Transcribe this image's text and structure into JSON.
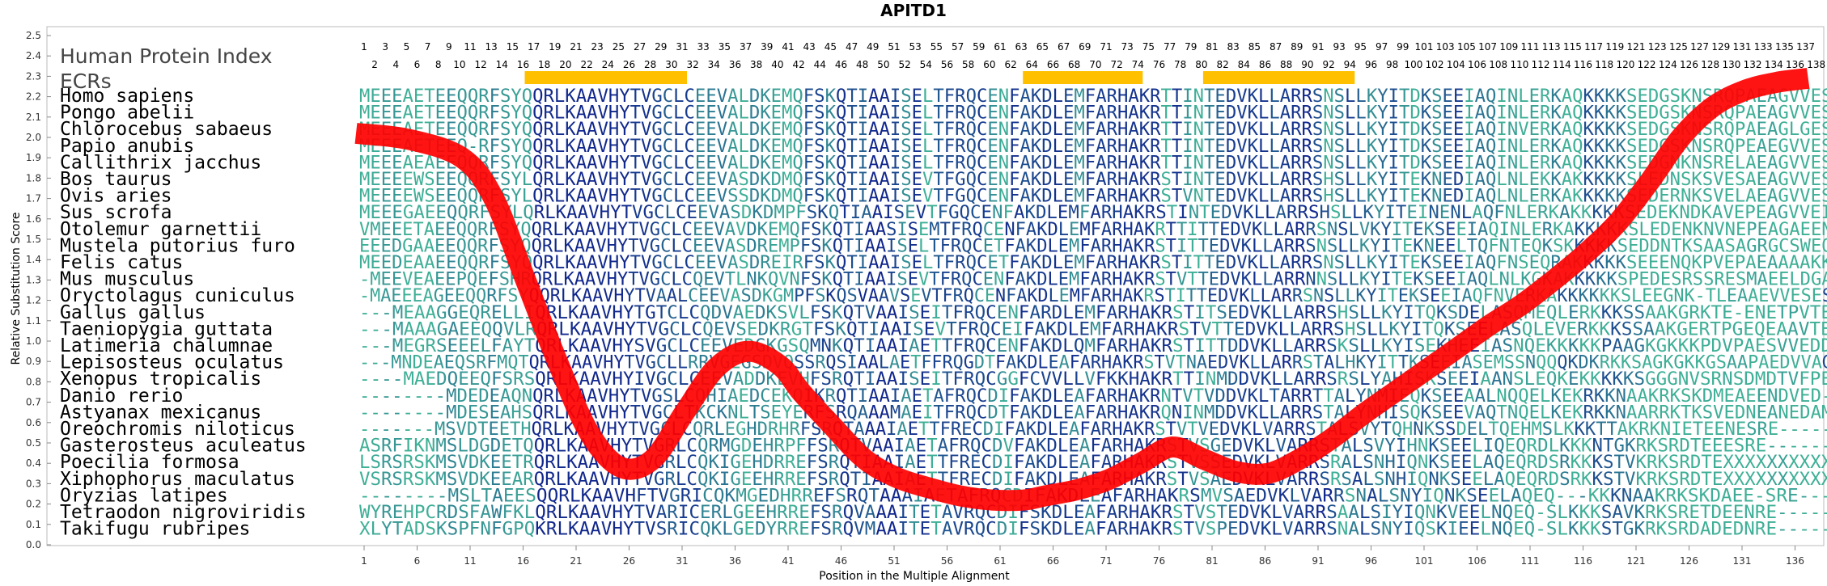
{
  "chart_data": {
    "type": "line",
    "title": "APITD1",
    "annotation_lines": [
      "Human Protein Index",
      "ECRs"
    ],
    "xlabel": "Position in the Multiple Alignment",
    "ylabel": "Relative Substitution Score",
    "xlim": [
      1,
      138
    ],
    "ylim": [
      0.0,
      2.5
    ],
    "y_ticks": [
      "0.0",
      "0.1",
      "0.2",
      "0.3",
      "0.4",
      "0.5",
      "0.6",
      "0.7",
      "0.8",
      "0.9",
      "1.0",
      "1.1",
      "1.2",
      "1.3",
      "1.4",
      "1.5",
      "1.6",
      "1.7",
      "1.8",
      "1.9",
      "2.0",
      "2.1",
      "2.2",
      "2.3",
      "2.4",
      "2.5"
    ],
    "x_ticks": [
      1,
      6,
      11,
      16,
      21,
      26,
      31,
      36,
      41,
      46,
      51,
      56,
      61,
      66,
      71,
      76,
      81,
      86,
      91,
      96,
      101,
      106,
      111,
      116,
      121,
      126,
      131,
      136
    ],
    "human_index_odd": [
      1,
      3,
      5,
      7,
      9,
      11,
      13,
      15,
      17,
      19,
      21,
      23,
      25,
      27,
      29,
      31,
      33,
      35,
      37,
      39,
      41,
      43,
      45,
      47,
      49,
      51,
      53,
      55,
      57,
      59,
      61,
      63,
      65,
      67,
      69,
      71,
      73,
      75,
      77,
      79,
      81,
      83,
      85,
      87,
      89,
      91,
      93,
      95,
      97,
      99,
      101,
      103,
      105,
      107,
      109,
      111,
      113,
      115,
      117,
      119,
      121,
      123,
      125,
      127,
      129,
      131,
      133,
      135,
      137
    ],
    "human_index_even": [
      2,
      4,
      6,
      8,
      10,
      12,
      14,
      16,
      18,
      20,
      22,
      24,
      26,
      28,
      30,
      32,
      34,
      36,
      38,
      40,
      42,
      44,
      46,
      48,
      50,
      52,
      54,
      56,
      58,
      60,
      62,
      64,
      66,
      68,
      70,
      72,
      74,
      76,
      78,
      80,
      82,
      84,
      86,
      88,
      90,
      92,
      94,
      96,
      98,
      100,
      102,
      104,
      106,
      108,
      110,
      112,
      114,
      116,
      118,
      120,
      122,
      124,
      126,
      128,
      130,
      132,
      134,
      136,
      138
    ],
    "ecr_regions": [
      [
        16,
        31
      ],
      [
        63,
        74
      ],
      [
        80,
        94
      ]
    ],
    "series": [
      {
        "color": "#ff0000",
        "x": [
          1,
          6,
          11,
          14,
          17,
          20,
          23,
          26,
          29,
          32,
          35,
          38,
          41,
          43,
          46,
          49,
          52,
          55,
          58,
          61,
          64,
          66,
          69,
          72,
          75,
          78,
          81,
          84,
          87,
          90,
          93,
          96,
          99,
          102,
          105,
          108,
          111,
          114,
          117,
          120,
          123,
          126,
          129,
          132,
          135,
          138
        ],
        "y": [
          2.02,
          1.99,
          1.9,
          1.7,
          1.3,
          0.9,
          0.55,
          0.38,
          0.42,
          0.65,
          0.87,
          0.95,
          0.88,
          0.75,
          0.58,
          0.42,
          0.33,
          0.28,
          0.24,
          0.22,
          0.22,
          0.24,
          0.27,
          0.32,
          0.4,
          0.48,
          0.42,
          0.36,
          0.35,
          0.42,
          0.52,
          0.64,
          0.75,
          0.86,
          0.97,
          1.08,
          1.18,
          1.3,
          1.43,
          1.58,
          1.78,
          2.0,
          2.15,
          2.23,
          2.27,
          2.29
        ]
      }
    ],
    "species": [
      "Homo sapiens",
      "Pongo abelii",
      "Chlorocebus sabaeus",
      "Papio anubis",
      "Callithrix jacchus",
      "Bos taurus",
      "Ovis aries",
      "Sus scrofa",
      "Otolemur garnettii",
      "Mustela putorius furo",
      "Felis catus",
      "Mus musculus",
      "Oryctolagus cuniculus",
      "Gallus gallus",
      "Taeniopygia guttata",
      "Latimeria chalumnae",
      "Lepisosteus oculatus",
      "Xenopus tropicalis",
      "Danio rerio",
      "Astyanax mexicanus",
      "Oreochromis niloticus",
      "Gasterosteus aculeatus",
      "Poecilia formosa",
      "Xiphophorus maculatus",
      "Oryzias latipes",
      "Tetraodon nigroviridis",
      "Takifugu rubripes"
    ],
    "sequences": [
      "MEEEAETEEQQRFSYQQRLKAAVHYTVGCLCEEVALDKEMQFSKQTIAAISELTFRQCENFAKDLEMFARHAKRTTINTEDVKLLARRSNSLLKYITDKSEEIAQINLERKAQKKKKSEDGSKNSRQPAEAGVVESEN",
      "MEEEAETEEQQRFSYQQRLKAAVHYTVGCLCEEVALDKEMQFSKQTIAAISELTFRQCENFAKDLEMFARHAKRTTINTEDVKLLARRSNSLLKYITDKSEEIAQINLERKAQKKKKSEDGSKNSRQPAEAGVVESEN",
      "MEEEAETEEQQRFSYQQRLKAAVHYTVGCLCEEVALDKEMQFSKQTIAAISELTFRQCENFAKDLEMFARHAKRTTINTEDVKLLARRSNSLLKYITDKSEEIAQINVERKAQKKKKSEDGSKNSRQPAEAGLGESEN",
      "MEEEAETEEQ-RFSYQQRLKAAVHYTVGCLCEEVALDKEMQFSKQTIAAISELTFRQCENFAKDLEMFARHAKRTTINTEDVKLLARRSNSLLKYITDKSEEIAQINLERKAQKKKKSEDGSKNSRQPEAEGVVESEN",
      "MEEEAEAEEQQRFSYQQRLKAAVHYTVGCLCEEVALDKEMQFSKQTIAAISELTFRQCENFAKDLEMFARHAKRTTINTEDVKLLARRSNSLLKYITDKSEEIAQINLERKAQKKKKSEDGNKNSRELAEAGVVESEN",
      "MEEEEWSEEQQRFSYLQRLKAAVHYTVGCLCEEVASDKDMQFSKQTIAAISEVTFGQCENFAKDLEMFARHAKRSTINTEDVKLLARRSHSLLKYITEKNEDIAQLNLEKKAKKKKKSLEDNSKSVESAEAGVVESEN",
      "MEEEEWSEEQQRFSYLQRLKAAVHYTVGCLCEEVSSDKDMQFSKQTIAAISEVTFGQCENFAKDLEMFARHAKRSTVNTEDVKLLARRSHSLLKYITEKNEDIAQLNLERKAKKKKKSEDERNKSVELAEAGVVESEN",
      "MEEEGAEEQQRFSYLQRLKAAVHYTVGCLCEEVASDKDMPFSKQTIAAISEVTFGQCENFAKDLEMFARHAKRSTINTEDVKLLARRSHSLLKYITEINENLAQFNLERKAKKKKKSEDEKNDKAVEPEAGVVEIEN",
      "VMEEETAEEQQRFSYQQRLKAAVHYTVGCLCEEVAVDKEMQFSKQTIAASISEMTFRQCENFAKDLEMFARHAKRTTITTEDVKLLARRSNSLVKYITEKSEEIAQINLERKAKKKKKSLEDENKNVNEPEAGAEENED",
      "EEEDGAAEEQQRFSYQQRLKAAVHYTVGCLCEEVASDREMPFSKQTIAAISELTFRQCETFAKDLEMFARHAKRSTITTEDVKLLARRSNSLLKYITEKNEELTQFNTEQKSKKKKKSEDDNTKSAASAGRGCSWEQRC",
      "MEEDEAAEEQQRFSYQQRLKAAVHYTVGCLCEEVASDREIRFSKQTIAAISELTFRQCETFAKDLEMFARHAKRSTITTEDVKLLARRSNSLLKYITEKSEEIAQFNSEQRAKKKKKSEEENQKPVEPAEAAAAKKDN",
      "-MEEVEAEEPQEFSHRQRLKAAVHYTVGCLCQEVTLNKQVNFSKQTIAAISEVTFRQCENFAKDLEMFARHAKRSTVTTEDVKLLARRNNSLLKYITEKSEEIAQLNLKGKAKKKKKSPEDESRSSRESMAEELDGAEE",
      "-MAEEEAGEEQQRFSYQQRLKAAVHYTVAALCEEVASDKGMPFSKQSVAAVSEVTFRQCENFAKDLEMFARHAKRSTITTEDVKLLARRSNSLLKYITEKSEEIAQFNVERKAKKKKKKSLEEGNK-TLEAAEVVESES--",
      "---MEAAGGEQRELLIQRLKAAVHYTGTCLCQDVAEDKSVLFSKQTVAAISEITFRQCENFARDLEMFARHAKRSTITSEDVKLLARRSHSLLKYITQKSDELASQMEQLERKKKSSAAKGRKTE-ENETPVTESE",
      "---MAAAGAEEQQVLRQRLKAAVHYTVGCLCQEVSEDKRGTFSKQTIAAISEVTFRQCEIFAKDLEMFARHAKRSTVTTEDVKLLARRSHSLLKYITQKSEELASQLEVERKKKSSAAKGERTPGEQEAAVTENE",
      "---MEGRSEEELFAYTQRLKAAVHYSVGCLCEEVEDGKGSQMNKQTIAAIAETTFRQCENFAKDLQMFARHAKRSTITTDDVKLLARRSKSLLKYISEKHEEIASNQEKKKKKPAAGKGKKKPDVPAESVVEDDDE",
      "---MNDEAEQSRFMQTQRLKAAVHYTVGCLLRRVGEGSDVQSSRQSIAALAETFFRQGDTFAKDLEAFARHAKRSTVTNAEDVKLLARRSTALHKYITTKSEEIASEMSSNQQQKDKRKKSAGKGKKGSAAPAEDVVAGSE",
      "----MAEDQEEQFSRSQRLKAAVHYIVGCLCEEVADDKEVHFSRQTIAAISEITFRQCGGFCVVLLVFKKHAKRTTINMDDVKLLARRSRSLYAHISKSEEIAANSLEQKEKKKKKSGGGNVSRNSDMDTVFPESK",
      "--------MDEDEAQNQRLKAAVHYTVGSLCQHIAEDCEKQIKRQTIAAIAETAFRQCDIFAKDLEAFARHAKRNTVTVDDVKLTARRTTALYNMIEQKSEEAALNQQELKEKRKKNAAKRKSKDMEAEENDVED---",
      "--------MDESEAHSQRLKAAVHYTVGCLTKCKNLTSEYERFSRQAAAMAEITFRQCDTFAKDLEAFARHAKRQNINMDDVKLLARRSTALYNHISQKSEEVAQTNQELKEKRKKNAARRKTKSVEDNEANEDAMDT",
      "-------MSVDTEETHQRLKAAVHYTVGCLCQRLEGHDRHRFSRQTAAAIAETTFRECDIFAKDLEAFARHAKRSTVTVEDVKLVARRSTALSVYTQHNKSSDELTQEHMSLKKKTTAKRKNIETEENESRE-------",
      "ASRFIKNMSLDGDETQQRLKAAVHYTVGRLCQRMGDEHRPFFSRQTVAAIAETAFRQCDVFAKDLEAFARHAKRSTVSGEDVKLVARRSTALSVYIHNKSEELIQEQRDLKKKNTGKRKSRDTEEESRE--------",
      "LSRSRSKMSVDKEETRQRLKAAVHYTVGRLCQKIGEHDRREFSRQTIAAIAETTFRECDIFAKDLEAFARHAKRSTVSSEDVKLVARRSRALSNHIQNKSEELAQEQRDSRKKKSTVKRKSRDTEXXXXXXXXXXXX",
      "VSRSRSKMSVDKEEARQRLKAAVHYTVGRLCQKIGEEHRREFSRQTIAAIAETTFRECDIFAKDLEAFARHAKRSTVSAEDVKLVARRSRSALSNHIQNKSEELAQEQRDSRKKSTVKRKSRDTEXXXXXXXXXXXX",
      "--------MSLTAEESQQRLKAAVHFTVGRICQKMGEDHRREFSRQTAAAIAETAFRQCDIFAKDLEAFARHAKRSMVSAEDVKLVARRSNALSNYIQNKSEELAQEQ---KKKNAAKRKSKDAEE-SRE-----",
      "WYREHPCRDSFAWFKLQRLKAAVHYTVARICERLGEEHRREFSRQVAAAITETAVRQCDIFSKDLEAFARHAKRSTVSTEDVKLVARRSAALSIYIQNKVEELNQEQ-SLKKKSAVKRKSRETDEENRE-------",
      "XLYTADSKSPFNFGPQKRLKAAVHYTVSRICQKLGEDYRREFSRQVMAAITETAVRQCDIFSKDLEAFARHAKRSTVSPEDVKLVARRSNALSNYIQSKIEELNQEQ-SLKKKSTGKRKSRDADEDNRE-------"
    ]
  }
}
